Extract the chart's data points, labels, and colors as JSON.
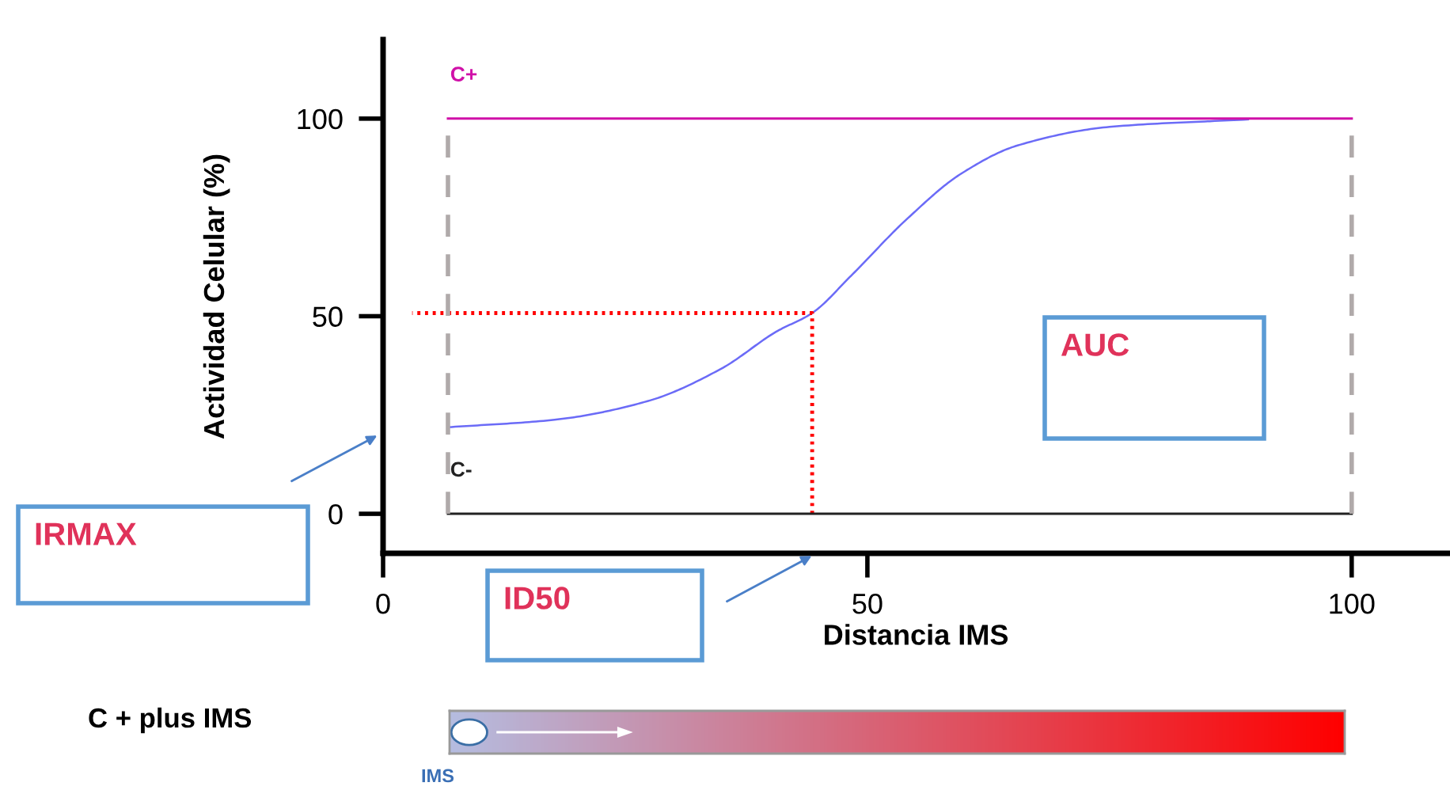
{
  "chart_data": {
    "type": "line",
    "xlabel": "Distancia IMS",
    "ylabel": "Actividad Celular (%)",
    "xlim": [
      0,
      110
    ],
    "ylim": [
      -10,
      120
    ],
    "xticks": [
      0,
      50,
      100
    ],
    "yticks": [
      0,
      50,
      100
    ],
    "grid": false,
    "legend": false,
    "series": [
      {
        "color": "#6b6bf7",
        "x": [
          6.7,
          17.7,
          27.3,
          34.9,
          40.6,
          44.3,
          48.3,
          54.0,
          59.7,
          65.5,
          75.0,
          89.3
        ],
        "values": [
          21.9,
          23.8,
          28.5,
          36.7,
          46.1,
          50.8,
          60.2,
          74.4,
          86.1,
          93.2,
          97.9,
          99.8
        ]
      },
      {
        "color": "#ff0000",
        "line_style": "dotted",
        "x": [
          3,
          44.3,
          44.3
        ],
        "values": [
          50.8,
          50.8,
          0
        ]
      }
    ],
    "ref_lines": [
      {
        "axis": "y",
        "value": 100,
        "label": "C+",
        "color": "#d010a8",
        "line_style": "solid"
      },
      {
        "axis": "y",
        "value": 0,
        "label": "C-",
        "color": "#222222",
        "line_style": "solid"
      },
      {
        "axis": "x",
        "value": 6.7,
        "color": "#b0aaaa",
        "line_style": "dashed"
      },
      {
        "axis": "x",
        "value": 100,
        "color": "#b0aaaa",
        "line_style": "dashed"
      }
    ],
    "annotations": [
      "IRMAX",
      "ID50",
      "AUC",
      "C + plus IMS",
      "IMS"
    ]
  }
}
